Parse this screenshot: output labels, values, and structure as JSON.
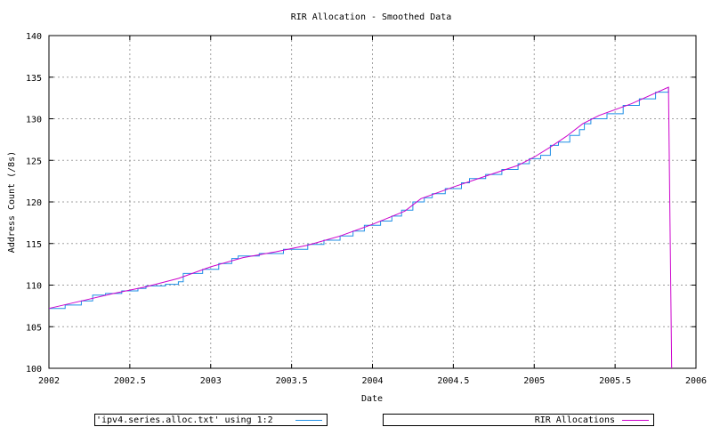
{
  "chart_data": {
    "type": "line",
    "title": "RIR Allocation - Smoothed Data",
    "xlabel": "Date",
    "ylabel": "Address Count (/8s)",
    "xlim": [
      2002,
      2006
    ],
    "ylim": [
      100,
      140
    ],
    "x_ticks": [
      2002,
      2002.5,
      2003,
      2003.5,
      2004,
      2004.5,
      2005,
      2005.5,
      2006
    ],
    "x_tick_labels": [
      "2002",
      "2002.5",
      "2003",
      "2003.5",
      "2004",
      "2004.5",
      "2005",
      "2005.5",
      "2006"
    ],
    "y_ticks": [
      100,
      105,
      110,
      115,
      120,
      125,
      130,
      135,
      140
    ],
    "y_tick_labels": [
      "100",
      "105",
      "110",
      "115",
      "120",
      "125",
      "130",
      "135",
      "140"
    ],
    "grid": true,
    "legend_placement": "bottom",
    "series": [
      {
        "name": "'ipv4.series.alloc.txt' using 1:2",
        "color": "#1f8fe6",
        "style": "steps",
        "points": [
          [
            2002,
            107.2
          ],
          [
            2002.1,
            107.6
          ],
          [
            2002.2,
            108.1
          ],
          [
            2002.27,
            108.8
          ],
          [
            2002.35,
            109.0
          ],
          [
            2002.45,
            109.3
          ],
          [
            2002.55,
            109.6
          ],
          [
            2002.6,
            109.9
          ],
          [
            2002.72,
            110.1
          ],
          [
            2002.8,
            110.4
          ],
          [
            2002.83,
            111.4
          ],
          [
            2002.95,
            111.9
          ],
          [
            2003.05,
            112.6
          ],
          [
            2003.13,
            113.2
          ],
          [
            2003.17,
            113.5
          ],
          [
            2003.3,
            113.8
          ],
          [
            2003.45,
            114.3
          ],
          [
            2003.6,
            114.9
          ],
          [
            2003.7,
            115.4
          ],
          [
            2003.8,
            115.9
          ],
          [
            2003.88,
            116.5
          ],
          [
            2003.95,
            117.2
          ],
          [
            2004.05,
            117.7
          ],
          [
            2004.12,
            118.3
          ],
          [
            2004.18,
            119.0
          ],
          [
            2004.25,
            120.0
          ],
          [
            2004.32,
            120.5
          ],
          [
            2004.37,
            121.0
          ],
          [
            2004.45,
            121.6
          ],
          [
            2004.55,
            122.3
          ],
          [
            2004.6,
            122.8
          ],
          [
            2004.7,
            123.3
          ],
          [
            2004.8,
            123.9
          ],
          [
            2004.9,
            124.6
          ],
          [
            2004.97,
            125.2
          ],
          [
            2005.04,
            125.6
          ],
          [
            2005.1,
            126.8
          ],
          [
            2005.15,
            127.2
          ],
          [
            2005.22,
            128.0
          ],
          [
            2005.28,
            128.7
          ],
          [
            2005.31,
            129.4
          ],
          [
            2005.35,
            130.0
          ],
          [
            2005.45,
            130.6
          ],
          [
            2005.55,
            131.6
          ],
          [
            2005.65,
            132.4
          ],
          [
            2005.75,
            133.2
          ],
          [
            2005.83,
            133.8
          ]
        ]
      },
      {
        "name": "RIR Allocations",
        "color": "#cc00cc",
        "style": "line",
        "points": [
          [
            2002,
            107.2
          ],
          [
            2002.2,
            108.1
          ],
          [
            2002.4,
            109.0
          ],
          [
            2002.6,
            109.8
          ],
          [
            2002.8,
            110.8
          ],
          [
            2003,
            112.2
          ],
          [
            2003.2,
            113.3
          ],
          [
            2003.4,
            114.0
          ],
          [
            2003.6,
            114.8
          ],
          [
            2003.8,
            115.9
          ],
          [
            2004,
            117.3
          ],
          [
            2004.2,
            118.9
          ],
          [
            2004.3,
            120.4
          ],
          [
            2004.5,
            121.8
          ],
          [
            2004.7,
            123.1
          ],
          [
            2004.9,
            124.4
          ],
          [
            2005,
            125.4
          ],
          [
            2005.1,
            126.6
          ],
          [
            2005.2,
            127.9
          ],
          [
            2005.3,
            129.4
          ],
          [
            2005.4,
            130.4
          ],
          [
            2005.6,
            131.8
          ],
          [
            2005.83,
            133.8
          ],
          [
            2005.85,
            100.0
          ]
        ]
      }
    ]
  }
}
